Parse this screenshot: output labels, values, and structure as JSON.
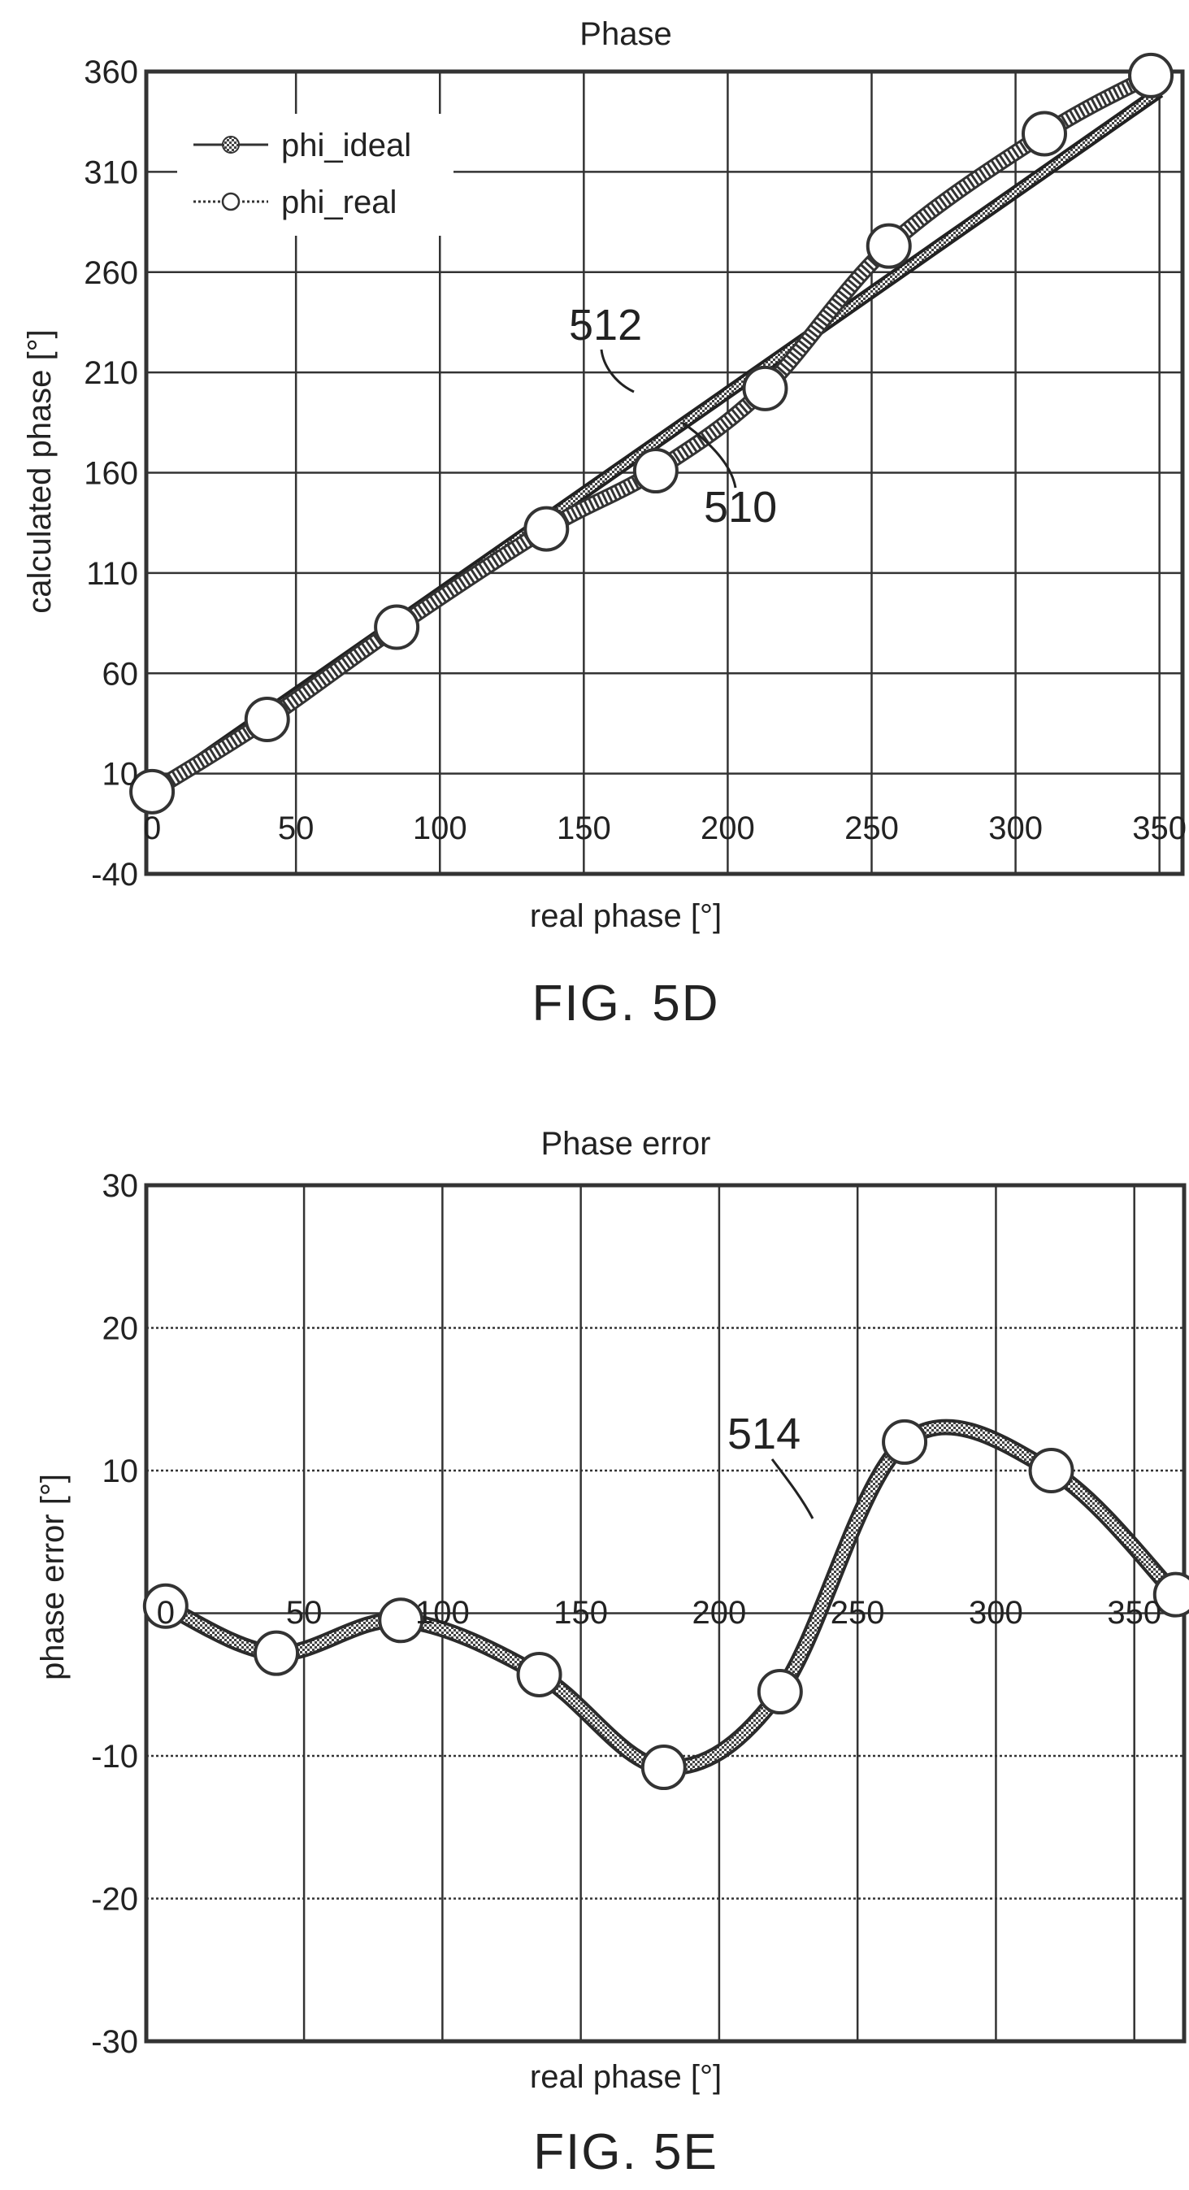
{
  "chart_data": [
    {
      "type": "line",
      "title": "Phase",
      "xlabel": "real phase [°]",
      "ylabel": "calculated phase [°]",
      "xlim": [
        -2,
        358
      ],
      "ylim": [
        -40,
        360
      ],
      "x_ticks": [
        "0",
        "50",
        "100",
        "150",
        "200",
        "250",
        "300",
        "350"
      ],
      "x_tick_values": [
        0,
        50,
        100,
        150,
        200,
        250,
        300,
        350
      ],
      "y_ticks": [
        "360",
        "310",
        "260",
        "210",
        "160",
        "110",
        "60",
        "10",
        "-40"
      ],
      "y_tick_values": [
        360,
        310,
        260,
        210,
        160,
        110,
        60,
        10,
        -40
      ],
      "grid": true,
      "legend": "top-left",
      "series": [
        {
          "name": "phi_ideal",
          "x": [
            0,
            350
          ],
          "y": [
            0,
            350
          ],
          "style": "solid-dots"
        },
        {
          "name": "phi_real",
          "x": [
            0,
            40,
            85,
            137,
            175,
            213,
            256,
            310,
            347
          ],
          "y": [
            1,
            37,
            83,
            132,
            161,
            202,
            273,
            329,
            358
          ],
          "style": "open-circles"
        }
      ],
      "annotations": [
        {
          "text": "512",
          "points_to": [
            178,
            185
          ]
        },
        {
          "text": "510",
          "points_to": [
            198,
            190
          ]
        }
      ],
      "caption": "FIG. 5D"
    },
    {
      "type": "line",
      "title": "Phase error",
      "xlabel": "real phase [°]",
      "ylabel": "phase error [°]",
      "xlim": [
        -7,
        368
      ],
      "ylim": [
        -30,
        30
      ],
      "x_ticks": [
        "0",
        "50",
        "100",
        "150",
        "200",
        "250",
        "300",
        "350"
      ],
      "x_tick_values": [
        0,
        50,
        100,
        150,
        200,
        250,
        300,
        350
      ],
      "y_ticks": [
        "30",
        "20",
        "10",
        "-10",
        "-20",
        "-30"
      ],
      "y_tick_values": [
        30,
        20,
        10,
        -10,
        -20,
        -30
      ],
      "grid": true,
      "series": [
        {
          "name": "",
          "x": [
            0,
            40,
            85,
            135,
            180,
            222,
            267,
            320,
            365
          ],
          "y": [
            0.5,
            -2.8,
            -0.5,
            -4.3,
            -10.8,
            -5.5,
            12,
            10,
            1.3
          ],
          "style": "open-circles"
        }
      ],
      "annotations": [
        {
          "text": "514",
          "points_to": [
            243,
            8
          ]
        }
      ],
      "caption": "FIG. 5E"
    }
  ]
}
